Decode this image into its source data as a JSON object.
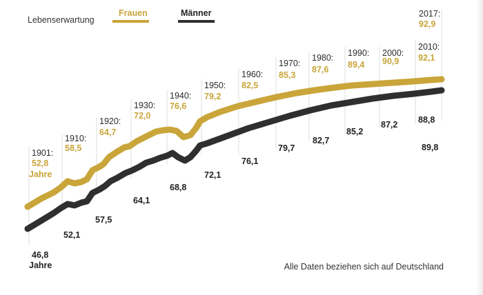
{
  "legend": {
    "title": "Lebenserwartung",
    "female_label": "Frauen",
    "male_label": "Männer"
  },
  "note": "Alle Daten beziehen sich auf Deutschland",
  "colors": {
    "female": "#c9a53a",
    "male": "#2f2f2f"
  },
  "chart_data": {
    "type": "line",
    "title": "",
    "ylabel": "Lebenserwartung",
    "xlabel": "",
    "unit": "Jahre",
    "x_range": [
      1901,
      2017
    ],
    "categories": [
      "1901",
      "1910",
      "1920",
      "1930",
      "1940",
      "1950",
      "1960",
      "1970",
      "1980",
      "1990",
      "2000",
      "2010",
      "2017"
    ],
    "year_labels": [
      "1901:",
      "1910:",
      "1920:",
      "1930:",
      "1940:",
      "1950:",
      "1960:",
      "1970:",
      "1980:",
      "1990:",
      "2000:",
      "2010:",
      "2017:"
    ],
    "series": [
      {
        "name": "Frauen",
        "values": [
          52.8,
          58.5,
          64.7,
          72.0,
          76.6,
          79.2,
          82.5,
          85.3,
          87.6,
          89.4,
          90.9,
          92.1,
          92.9
        ],
        "labels": [
          "52,8",
          "58,5",
          "64,7",
          "72,0",
          "76,6",
          "79,2",
          "82,5",
          "85,3",
          "87,6",
          "89,4",
          "90,9",
          "92,1",
          "92,9"
        ]
      },
      {
        "name": "Männer",
        "values": [
          46.8,
          52.1,
          57.5,
          64.1,
          68.8,
          72.1,
          76.1,
          79.7,
          82.7,
          85.2,
          87.2,
          88.8,
          89.8
        ],
        "labels": [
          "46,8",
          "52,1",
          "57,5",
          "64,1",
          "68,8",
          "72,1",
          "76,1",
          "79,7",
          "82,7",
          "85,2",
          "87,2",
          "88,8",
          "89,8"
        ]
      }
    ],
    "first_label_suffix": "Jahre",
    "grid": false,
    "legend_position": "top-left"
  }
}
